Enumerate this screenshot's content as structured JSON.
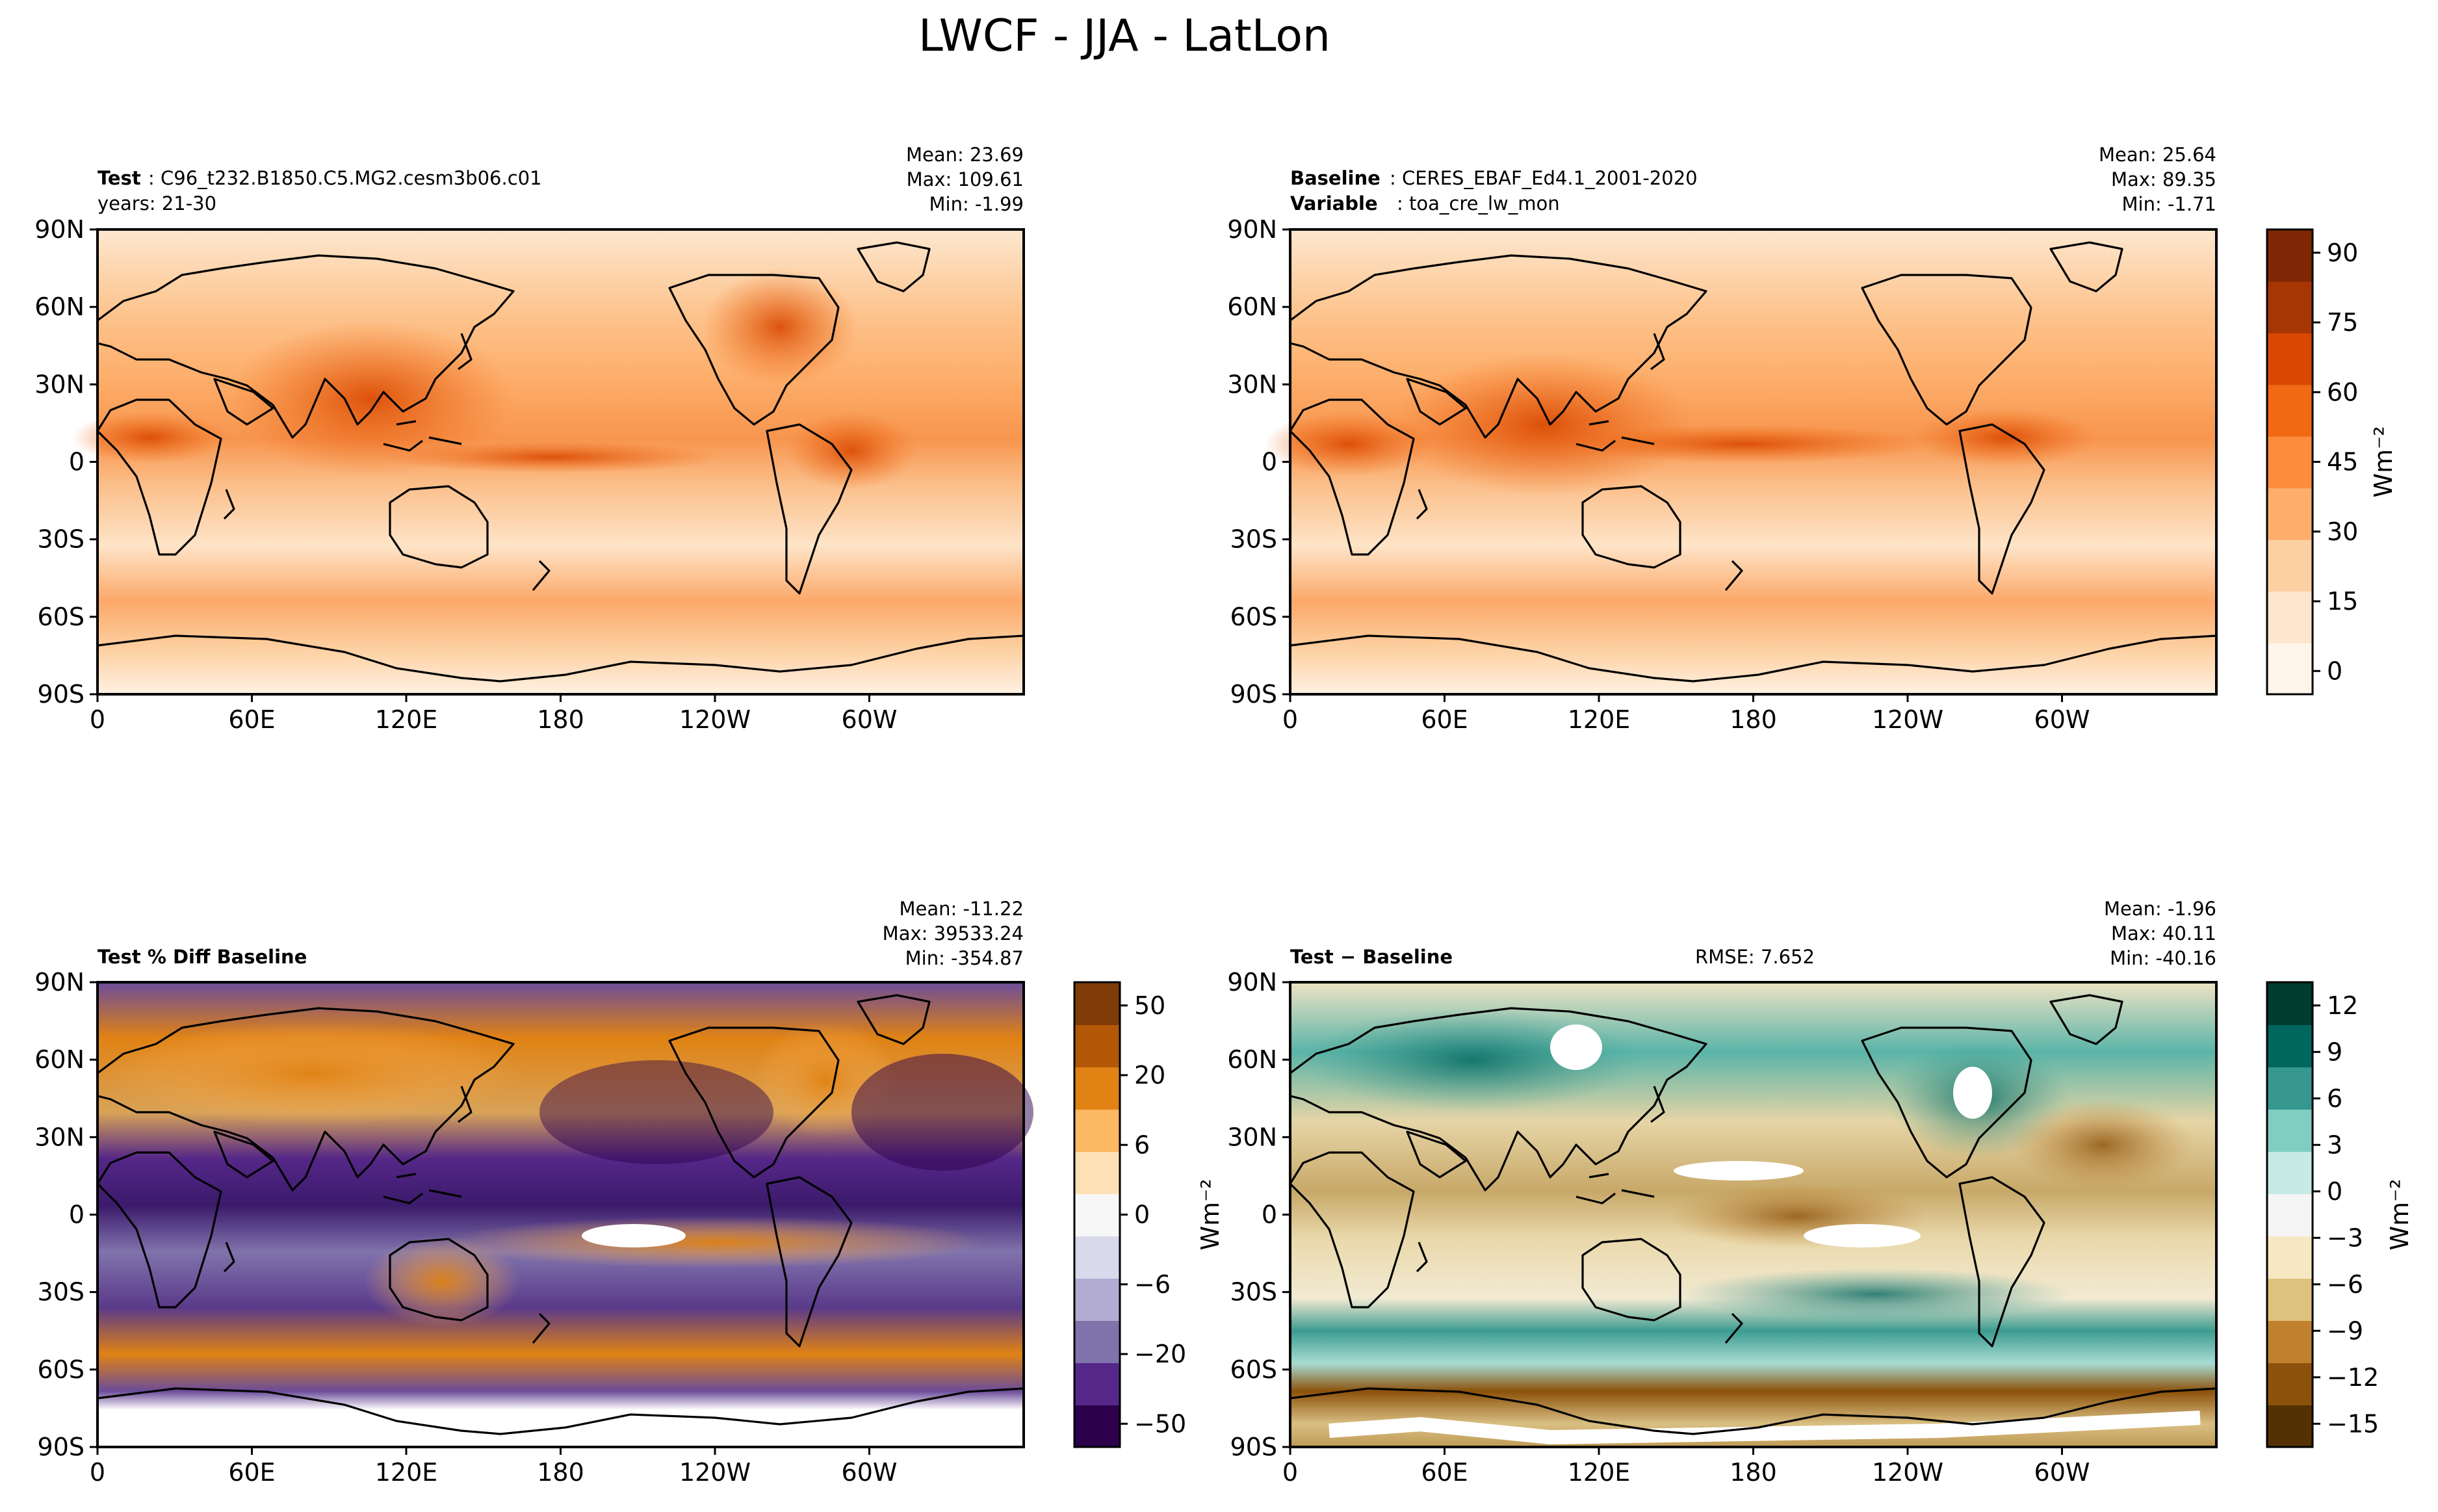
{
  "title": "LWCF - JJA - LatLon",
  "units": "Wm⁻²",
  "x_ticks": [
    "0",
    "60E",
    "120E",
    "180",
    "120W",
    "60W"
  ],
  "y_ticks": [
    "90N",
    "60N",
    "30N",
    "0",
    "30S",
    "60S",
    "90S"
  ],
  "panels": {
    "test": {
      "label_bold": "Test",
      "label": ": C96_t232.B1850.C5.MG2.cesm3b06.c01",
      "line2": "years: 21-30",
      "mean": "Mean: 23.69",
      "max": "Max: 109.61",
      "min": "Min: -1.99"
    },
    "baseline": {
      "label_bold": "Baseline",
      "label": ": CERES_EBAF_Ed4.1_2001-2020",
      "var_bold": "Variable",
      "var": ": toa_cre_lw_mon",
      "mean": "Mean: 25.64",
      "max": "Max: 89.35",
      "min": "Min: -1.71"
    },
    "pctdiff": {
      "label_bold": "Test % Diff Baseline",
      "mean": "Mean: -11.22",
      "max": "Max: 39533.24",
      "min": "Min: -354.87"
    },
    "diff": {
      "label_bold": "Test − Baseline",
      "rmse": "RMSE: 7.652",
      "mean": "Mean: -1.96",
      "max": "Max: 40.11",
      "min": "Min: -40.16"
    }
  },
  "colorbars": {
    "main": {
      "ticks": [
        "90",
        "75",
        "60",
        "45",
        "30",
        "15",
        "0"
      ],
      "label": "Wm⁻²",
      "colors": [
        "#fff5eb",
        "#fee6ce",
        "#fdd0a2",
        "#fdae6b",
        "#fd8d3c",
        "#f16913",
        "#d94801",
        "#a63603",
        "#7f2704"
      ]
    },
    "pct": {
      "ticks": [
        "50",
        "20",
        "6",
        "0",
        "−6",
        "−20",
        "−50"
      ],
      "label": "Wm⁻²",
      "colors": [
        "#2d004b",
        "#542788",
        "#8073ac",
        "#b2abd2",
        "#d8daeb",
        "#f7f7f7",
        "#fee0b6",
        "#fdb863",
        "#e08214",
        "#b35806",
        "#7f3b08"
      ]
    },
    "diff": {
      "ticks": [
        "12",
        "9",
        "6",
        "3",
        "0",
        "−3",
        "−6",
        "−9",
        "−12",
        "−15"
      ],
      "label": "Wm⁻²",
      "colors": [
        "#543005",
        "#8c510a",
        "#bf812d",
        "#dfc27d",
        "#f6e8c3",
        "#f5f5f5",
        "#c7eae5",
        "#80cdc1",
        "#35978f",
        "#01665e",
        "#003c30"
      ]
    }
  },
  "chart_data": [
    {
      "type": "heatmap",
      "title": "Test: C96_t232.B1850.C5.MG2.cesm3b06.c01",
      "units": "Wm⁻²",
      "x_ticks": [
        "0",
        "60E",
        "120E",
        "180",
        "120W",
        "60W"
      ],
      "y_ticks": [
        "90N",
        "60N",
        "30N",
        "0",
        "30S",
        "60S",
        "90S"
      ],
      "mean": 23.69,
      "max": 109.61,
      "min": -1.99,
      "colorbar_range": [
        -10,
        95
      ]
    },
    {
      "type": "heatmap",
      "title": "Baseline: CERES_EBAF_Ed4.1_2001-2020",
      "units": "Wm⁻²",
      "x_ticks": [
        "0",
        "60E",
        "120E",
        "180",
        "120W",
        "60W"
      ],
      "y_ticks": [
        "90N",
        "60N",
        "30N",
        "0",
        "30S",
        "60S",
        "90S"
      ],
      "mean": 25.64,
      "max": 89.35,
      "min": -1.71,
      "colorbar_range": [
        -10,
        95
      ]
    },
    {
      "type": "heatmap",
      "title": "Test % Diff Baseline",
      "x_ticks": [
        "0",
        "60E",
        "120E",
        "180",
        "120W",
        "60W"
      ],
      "y_ticks": [
        "90N",
        "60N",
        "30N",
        "0",
        "30S",
        "60S",
        "90S"
      ],
      "mean": -11.22,
      "max": 39533.24,
      "min": -354.87
    },
    {
      "type": "heatmap",
      "title": "Test − Baseline",
      "units": "Wm⁻²",
      "x_ticks": [
        "0",
        "60E",
        "120E",
        "180",
        "120W",
        "60W"
      ],
      "y_ticks": [
        "90N",
        "60N",
        "30N",
        "0",
        "30S",
        "60S",
        "90S"
      ],
      "mean": -1.96,
      "max": 40.11,
      "min": -40.16,
      "rmse": 7.652,
      "colorbar_range": [
        -15,
        14
      ]
    }
  ]
}
